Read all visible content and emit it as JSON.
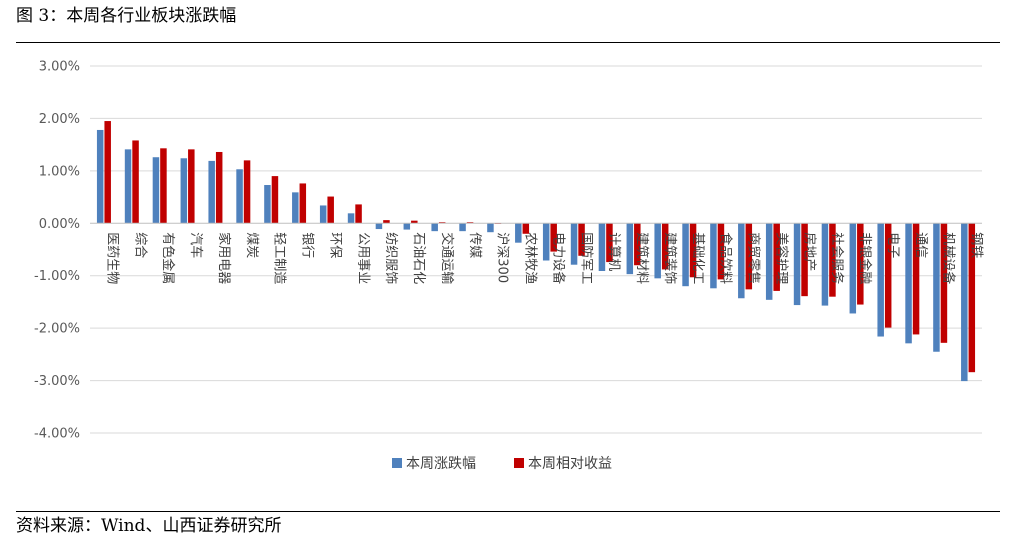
{
  "figure_title": "图 3：本周各行业板块涨跌幅",
  "source_note": "资料来源：Wind、山西证券研究所",
  "chart_data": {
    "type": "bar",
    "title": "",
    "xlabel": "",
    "ylabel": "",
    "ylim": [
      -0.04,
      0.03
    ],
    "yticks": [
      "3.00%",
      "2.00%",
      "1.00%",
      "0.00%",
      "-1.00%",
      "-2.00%",
      "-3.00%",
      "-4.00%"
    ],
    "ytick_values": [
      0.03,
      0.02,
      0.01,
      0.0,
      -0.01,
      -0.02,
      -0.03,
      -0.04
    ],
    "grid": true,
    "legend_position": "bottom",
    "categories": [
      "医药生物",
      "综合",
      "有色金属",
      "汽车",
      "家用电器",
      "煤炭",
      "轻工制造",
      "银行",
      "环保",
      "公用事业",
      "纺织服饰",
      "石油石化",
      "交通运输",
      "传媒",
      "沪深300",
      "农林牧渔",
      "电力设备",
      "国防军工",
      "计算机",
      "建筑材料",
      "建筑装饰",
      "基础化工",
      "食品饮料",
      "商贸零售",
      "美容护理",
      "房地产",
      "社会服务",
      "非银金融",
      "电子",
      "通信",
      "机械设备",
      "钢铁"
    ],
    "series": [
      {
        "name": "本周涨跌幅",
        "color": "#4f81bd",
        "values": [
          0.0178,
          0.0141,
          0.0126,
          0.0124,
          0.0119,
          0.0103,
          0.0073,
          0.0059,
          0.0034,
          0.0019,
          -0.0011,
          -0.0012,
          -0.0015,
          -0.0015,
          -0.0017,
          -0.0037,
          -0.0071,
          -0.0079,
          -0.0091,
          -0.0097,
          -0.0105,
          -0.012,
          -0.0124,
          -0.0143,
          -0.0146,
          -0.0156,
          -0.0157,
          -0.0172,
          -0.0216,
          -0.0229,
          -0.0245,
          -0.0301
        ]
      },
      {
        "name": "本周相对收益",
        "color": "#c00000",
        "values": [
          0.0195,
          0.0158,
          0.0143,
          0.0141,
          0.0136,
          0.012,
          0.009,
          0.0076,
          0.0051,
          0.0036,
          0.0006,
          0.0005,
          0.0002,
          0.0002,
          0.0,
          -0.002,
          -0.0054,
          -0.0062,
          -0.0074,
          -0.008,
          -0.0088,
          -0.0103,
          -0.0107,
          -0.0126,
          -0.0129,
          -0.0139,
          -0.014,
          -0.0155,
          -0.0199,
          -0.0212,
          -0.0228,
          -0.0284
        ]
      }
    ]
  }
}
